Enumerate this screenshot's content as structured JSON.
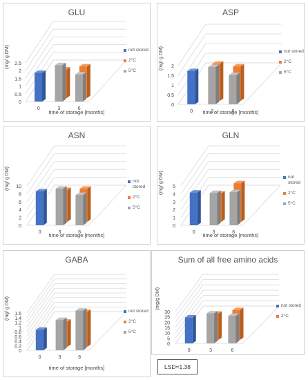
{
  "xlabel": "time of storage [months]",
  "ylabel_default": "(mg/ g DM)",
  "ylabel_sum": "(mg/g DM)",
  "lsd_label": "LSD=1.38",
  "legend": [
    {
      "label": "not stored",
      "color": "#4472C4"
    },
    {
      "label": "2°C",
      "color": "#ED7D31"
    },
    {
      "label": "5°C",
      "color": "#A5A5A5"
    }
  ],
  "chart_data": [
    {
      "type": "bar",
      "title": "GLU",
      "x_ticks": [
        "0",
        "3",
        "6"
      ],
      "series": [
        {
          "name": "not stored",
          "values": [
            1.85,
            null,
            null
          ]
        },
        {
          "name": "2°C",
          "values": [
            null,
            1.85,
            2.05
          ]
        },
        {
          "name": "5°C",
          "values": [
            null,
            2.35,
            1.75
          ]
        }
      ],
      "y_ticks": [
        "0",
        "0.5",
        "1",
        "1.5",
        "2",
        "2.5"
      ],
      "ylim": [
        0,
        2.5
      ]
    },
    {
      "type": "bar",
      "title": "ASP",
      "x_ticks": [
        "0",
        "3",
        "6"
      ],
      "series": [
        {
          "name": "not stored",
          "values": [
            1.72,
            null,
            null
          ]
        },
        {
          "name": "2°C",
          "values": [
            null,
            1.92,
            1.78
          ]
        },
        {
          "name": "5°C",
          "values": [
            null,
            1.93,
            1.52
          ]
        }
      ],
      "y_ticks": [
        "0",
        "0.5",
        "1",
        "1.5",
        "2"
      ],
      "ylim": [
        0,
        2
      ]
    },
    {
      "type": "bar",
      "title": "ASN",
      "x_ticks": [
        "0",
        "3",
        "6"
      ],
      "series": [
        {
          "name": "not stored",
          "values": [
            8.6,
            null,
            null
          ]
        },
        {
          "name": "2°C",
          "values": [
            null,
            8.1,
            8.4
          ]
        },
        {
          "name": "5°C",
          "values": [
            null,
            9.3,
            7.7
          ]
        }
      ],
      "y_ticks": [
        "0",
        "2",
        "4",
        "6",
        "8",
        "10"
      ],
      "ylim": [
        0,
        10
      ]
    },
    {
      "type": "bar",
      "title": "GLN",
      "x_ticks": [
        "0",
        "3",
        "6"
      ],
      "series": [
        {
          "name": "not stored",
          "values": [
            4.15,
            null,
            null
          ]
        },
        {
          "name": "2°C",
          "values": [
            null,
            3.6,
            4.9
          ]
        },
        {
          "name": "5°C",
          "values": [
            null,
            4.1,
            4.2
          ]
        }
      ],
      "y_ticks": [
        "0",
        "1",
        "2",
        "3",
        "4",
        "5"
      ],
      "ylim": [
        0,
        5
      ]
    },
    {
      "type": "bar",
      "title": "GABA",
      "x_ticks": [
        "0",
        "3",
        "6"
      ],
      "series": [
        {
          "name": "not stored",
          "values": [
            0.88,
            null,
            null
          ]
        },
        {
          "name": "2°C",
          "values": [
            null,
            1.08,
            1.5
          ]
        },
        {
          "name": "5°C",
          "values": [
            null,
            1.3,
            1.7
          ]
        }
      ],
      "y_ticks": [
        "0",
        "0.2",
        "0.4",
        "0.6",
        "0.8",
        "1",
        "1.2",
        "1.4",
        "1.6"
      ],
      "ylim": [
        0,
        1.6
      ]
    },
    {
      "type": "bar",
      "title": "Sum of all free amino acids",
      "x_ticks": [
        "0",
        "3",
        "6"
      ],
      "series": [
        {
          "name": "not stored",
          "values": [
            24.5,
            null,
            null
          ]
        },
        {
          "name": "2°C",
          "values": [
            null,
            24.8,
            28.2
          ]
        },
        {
          "name": "5°C",
          "values": [
            null,
            28.3,
            26.0
          ]
        }
      ],
      "y_ticks": [
        "0",
        "5",
        "10",
        "15",
        "20",
        "25",
        "30"
      ],
      "ylim": [
        0,
        30
      ]
    }
  ]
}
